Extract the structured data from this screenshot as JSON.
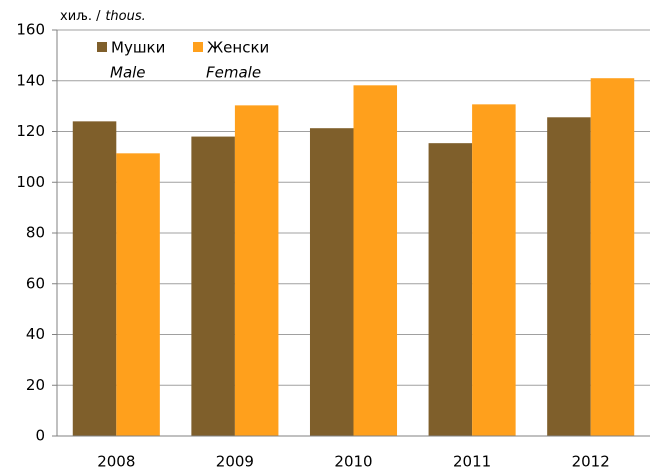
{
  "chart_data": {
    "type": "bar",
    "y_label": "хиљ. /",
    "y_label_en": "thous.",
    "categories": [
      "2008",
      "2009",
      "2010",
      "2011",
      "2012"
    ],
    "series": [
      {
        "name": "Мушки",
        "name_en": "Male",
        "color": "#7f5f2b",
        "values": [
          124,
          118,
          121.3,
          115.4,
          125.6
        ]
      },
      {
        "name": "Женски",
        "name_en": "Female",
        "color": "#ffa01c",
        "values": [
          111.4,
          130.3,
          138.2,
          130.7,
          141
        ]
      }
    ],
    "ylim": [
      0,
      160
    ],
    "yticks": [
      0,
      20,
      40,
      60,
      80,
      100,
      120,
      140,
      160
    ],
    "grid": true
  }
}
